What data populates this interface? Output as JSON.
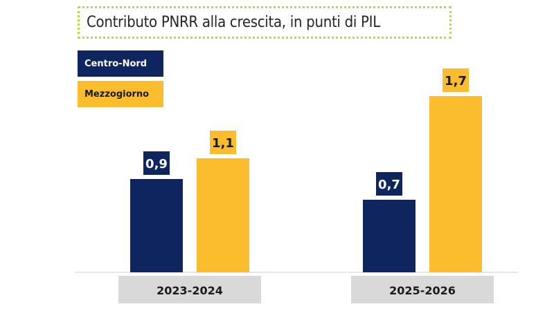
{
  "chart_data": {
    "type": "bar",
    "title": "Contributo PNRR alla crescita, in punti di PIL",
    "categories": [
      "2023-2024",
      "2025-2026"
    ],
    "series": [
      {
        "name": "Centro-Nord",
        "values": [
          0.9,
          0.7
        ],
        "labels": [
          "0,9",
          "0,7"
        ],
        "color": "#0f2560"
      },
      {
        "name": "Mezzogiorno",
        "values": [
          1.1,
          1.7
        ],
        "labels": [
          "1,1",
          "1,7"
        ],
        "color": "#fbbd2e"
      }
    ],
    "ylim": [
      0,
      1.7
    ],
    "grid": false,
    "legend": "top-left"
  },
  "colors": {
    "title_border": "#b6d84a",
    "category_box": "#d9d9d9",
    "axis": "#cfcfcf"
  }
}
